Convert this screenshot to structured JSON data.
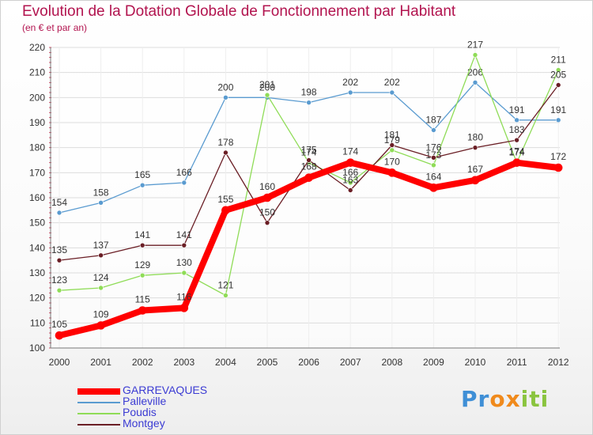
{
  "title": "Evolution de la Dotation Globale de Fonctionnement par Habitant",
  "subtitle": "(en € et par an)",
  "chart_data": {
    "type": "line",
    "title": "Evolution de la Dotation Globale de Fonctionnement par Habitant",
    "subtitle": "(en € et par an)",
    "xlabel": "",
    "ylabel": "",
    "ylim": [
      100,
      220
    ],
    "yticks": [
      100,
      110,
      120,
      130,
      140,
      150,
      160,
      170,
      180,
      190,
      200,
      210,
      220
    ],
    "categories": [
      "2000",
      "2001",
      "2002",
      "2003",
      "2004",
      "2005",
      "2006",
      "2007",
      "2008",
      "2009",
      "2010",
      "2011",
      "2012"
    ],
    "series": [
      {
        "name": "Palleville",
        "color": "#5a9bd0",
        "values": [
          154,
          158,
          165,
          166,
          200,
          200,
          198,
          202,
          202,
          187,
          206,
          191,
          191
        ]
      },
      {
        "name": "Poudis",
        "color": "#8fdc57",
        "values": [
          123,
          124,
          129,
          130,
          121,
          201,
          174,
          166,
          179,
          173,
          217,
          174,
          211
        ]
      },
      {
        "name": "Montgey",
        "color": "#6a1e25",
        "values": [
          135,
          137,
          141,
          141,
          178,
          150,
          175,
          163,
          181,
          176,
          180,
          183,
          205
        ]
      },
      {
        "name": "GARREVAQUES",
        "color": "#ff0000",
        "values": [
          105,
          109,
          115,
          116,
          155,
          160,
          168,
          174,
          170,
          164,
          167,
          174,
          172
        ]
      }
    ],
    "legend": [
      "GARREVAQUES",
      "Palleville",
      "Poudis",
      "Montgey"
    ],
    "legend_position": "bottom-left",
    "grid": true
  },
  "logo": {
    "letters": [
      "P",
      "r",
      "o",
      "x",
      "i",
      "t",
      "i"
    ],
    "colors": [
      "#3f8fd6",
      "#3f8fd6",
      "#f08a1c",
      "#f08a1c",
      "#8ac43f",
      "#8ac43f",
      "#8ac43f"
    ]
  }
}
